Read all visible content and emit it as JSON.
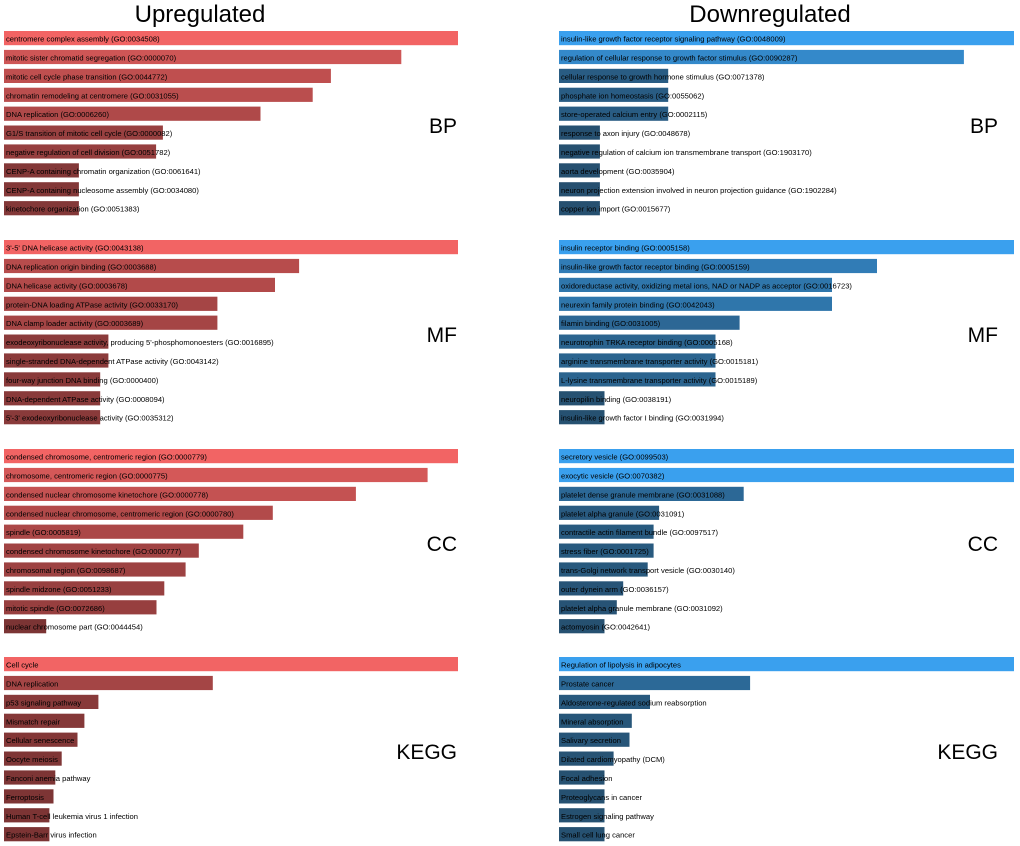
{
  "chart_data": [
    {
      "type": "bar",
      "orientation": "horizontal",
      "column": "Upregulated",
      "title": "Upregulated",
      "section": "BP",
      "low_color": "#6e2f2f",
      "high_color": "#f26464",
      "categories": [
        "centromere complex assembly (GO:0034508)",
        "mitotic sister chromatid segregation (GO:0000070)",
        "mitotic cell cycle phase transition (GO:0044772)",
        "chromatin remodeling at centromere (GO:0031055)",
        "DNA replication (GO:0006260)",
        "G1/S transition of mitotic cell cycle (GO:0000082)",
        "negative regulation of cell division (GO:0051782)",
        "CENP-A containing chromatin organization (GO:0061641)",
        "CENP-A containing nucleosome assembly (GO:0034080)",
        "kinetochore organization (GO:0051383)"
      ],
      "values": [
        1.0,
        0.875,
        0.72,
        0.68,
        0.565,
        0.35,
        0.335,
        0.165,
        0.165,
        0.165
      ]
    },
    {
      "type": "bar",
      "orientation": "horizontal",
      "column": "Upregulated",
      "section": "MF",
      "low_color": "#6e2f2f",
      "high_color": "#f26464",
      "categories": [
        "3'-5' DNA helicase activity (GO:0043138)",
        "DNA replication origin binding (GO:0003688)",
        "DNA helicase activity (GO:0003678)",
        "protein-DNA loading ATPase activity (GO:0033170)",
        "DNA clamp loader activity (GO:0003689)",
        "exodeoxyribonuclease activity, producing 5'-phosphomonoesters (GO:0016895)",
        "single-stranded DNA-dependent ATPase activity (GO:0043142)",
        "four-way junction DNA binding (GO:0000400)",
        "DNA-dependent ATPase activity (GO:0008094)",
        "5'-3' exodeoxyribonuclease activity (GO:0035312)"
      ],
      "values": [
        1.0,
        0.65,
        0.597,
        0.47,
        0.47,
        0.23,
        0.23,
        0.212,
        0.212,
        0.212
      ]
    },
    {
      "type": "bar",
      "orientation": "horizontal",
      "column": "Upregulated",
      "section": "CC",
      "low_color": "#6e2f2f",
      "high_color": "#f26464",
      "categories": [
        "condensed chromosome, centromeric region (GO:0000779)",
        "chromosome, centromeric region (GO:0000775)",
        "condensed nuclear chromosome kinetochore (GO:0000778)",
        "condensed nuclear chromosome, centromeric region (GO:0000780)",
        "spindle (GO:0005819)",
        "condensed chromosome kinetochore (GO:0000777)",
        "chromosomal region (GO:0098687)",
        "spindle midzone (GO:0051233)",
        "mitotic spindle (GO:0072686)",
        "nuclear chromosome part (GO:0044454)"
      ],
      "values": [
        1.0,
        0.933,
        0.775,
        0.592,
        0.527,
        0.429,
        0.4,
        0.353,
        0.336,
        0.093
      ]
    },
    {
      "type": "bar",
      "orientation": "horizontal",
      "column": "Upregulated",
      "section": "KEGG",
      "low_color": "#6e2f2f",
      "high_color": "#f26464",
      "categories": [
        "Cell cycle",
        "DNA replication",
        "p53 signaling pathway",
        "Mismatch repair",
        "Cellular senescence",
        "Oocyte meiosis",
        "Fanconi anemia pathway",
        "Ferroptosis",
        "Human T-cell leukemia virus 1 infection",
        "Epstein-Barr virus infection"
      ],
      "values": [
        1.0,
        0.46,
        0.208,
        0.177,
        0.162,
        0.127,
        0.113,
        0.109,
        0.1,
        0.1
      ]
    },
    {
      "type": "bar",
      "orientation": "horizontal",
      "column": "Downregulated",
      "title": "Downregulated",
      "section": "BP",
      "low_color": "#244863",
      "high_color": "#3aa0ee",
      "categories": [
        "insulin-like growth factor receptor signaling pathway (GO:0048009)",
        "regulation of cellular response to growth factor stimulus (GO:0090287)",
        "cellular response to growth hormone stimulus (GO:0071378)",
        "phosphate ion homeostasis (GO:0055062)",
        "store-operated calcium entry (GO:0002115)",
        "response to axon injury (GO:0048678)",
        "negative regulation of calcium ion transmembrane transport (GO:1903170)",
        "aorta development (GO:0035904)",
        "neuron projection extension involved in neuron projection guidance (GO:1902284)",
        "copper ion import (GO:0015677)"
      ],
      "values": [
        1.0,
        0.89,
        0.24,
        0.24,
        0.24,
        0.09,
        0.09,
        0.09,
        0.09,
        0.09
      ]
    },
    {
      "type": "bar",
      "orientation": "horizontal",
      "column": "Downregulated",
      "section": "MF",
      "low_color": "#244863",
      "high_color": "#3aa0ee",
      "categories": [
        "insulin receptor binding (GO:0005158)",
        "insulin-like growth factor receptor binding (GO:0005159)",
        "oxidoreductase activity, oxidizing metal ions, NAD or NADP as acceptor (GO:0016723)",
        "neurexin family protein binding (GO:0042043)",
        "filamin binding (GO:0031005)",
        "neurotrophin TRKA receptor binding (GO:0005168)",
        "arginine transmembrane transporter activity (GO:0015181)",
        "L-lysine transmembrane transporter activity (GO:0015189)",
        "neuropilin binding (GO:0038191)",
        "insulin-like growth factor I binding (GO:0031994)"
      ],
      "values": [
        1.0,
        0.699,
        0.6,
        0.6,
        0.397,
        0.344,
        0.344,
        0.344,
        0.1,
        0.1
      ]
    },
    {
      "type": "bar",
      "orientation": "horizontal",
      "column": "Downregulated",
      "section": "CC",
      "low_color": "#244863",
      "high_color": "#3aa0ee",
      "categories": [
        "secretory vesicle (GO:0099503)",
        "exocytic vesicle (GO:0070382)",
        "platelet dense granule membrane (GO:0031088)",
        "platelet alpha granule (GO:0031091)",
        "contractile actin filament bundle (GO:0097517)",
        "stress fiber (GO:0001725)",
        "trans-Golgi network transport vesicle (GO:0030140)",
        "outer dynein arm (GO:0036157)",
        "platelet alpha granule membrane (GO:0031092)",
        "actomyosin (GO:0042641)"
      ],
      "values": [
        1.0,
        1.0,
        0.406,
        0.22,
        0.208,
        0.208,
        0.195,
        0.141,
        0.127,
        0.1
      ]
    },
    {
      "type": "bar",
      "orientation": "horizontal",
      "column": "Downregulated",
      "section": "KEGG",
      "low_color": "#244863",
      "high_color": "#3aa0ee",
      "categories": [
        "Regulation of lipolysis in adipocytes",
        "Prostate cancer",
        "Aldosterone-regulated sodium reabsorption",
        "Mineral absorption",
        "Salivary secretion",
        "Dilated cardiomyopathy (DCM)",
        "Focal adhesion",
        "Proteoglycans in cancer",
        "Estrogen signaling pathway",
        "Small cell lung cancer"
      ],
      "values": [
        1.0,
        0.42,
        0.2,
        0.16,
        0.155,
        0.12,
        0.1,
        0.1,
        0.1,
        0.1
      ]
    }
  ]
}
